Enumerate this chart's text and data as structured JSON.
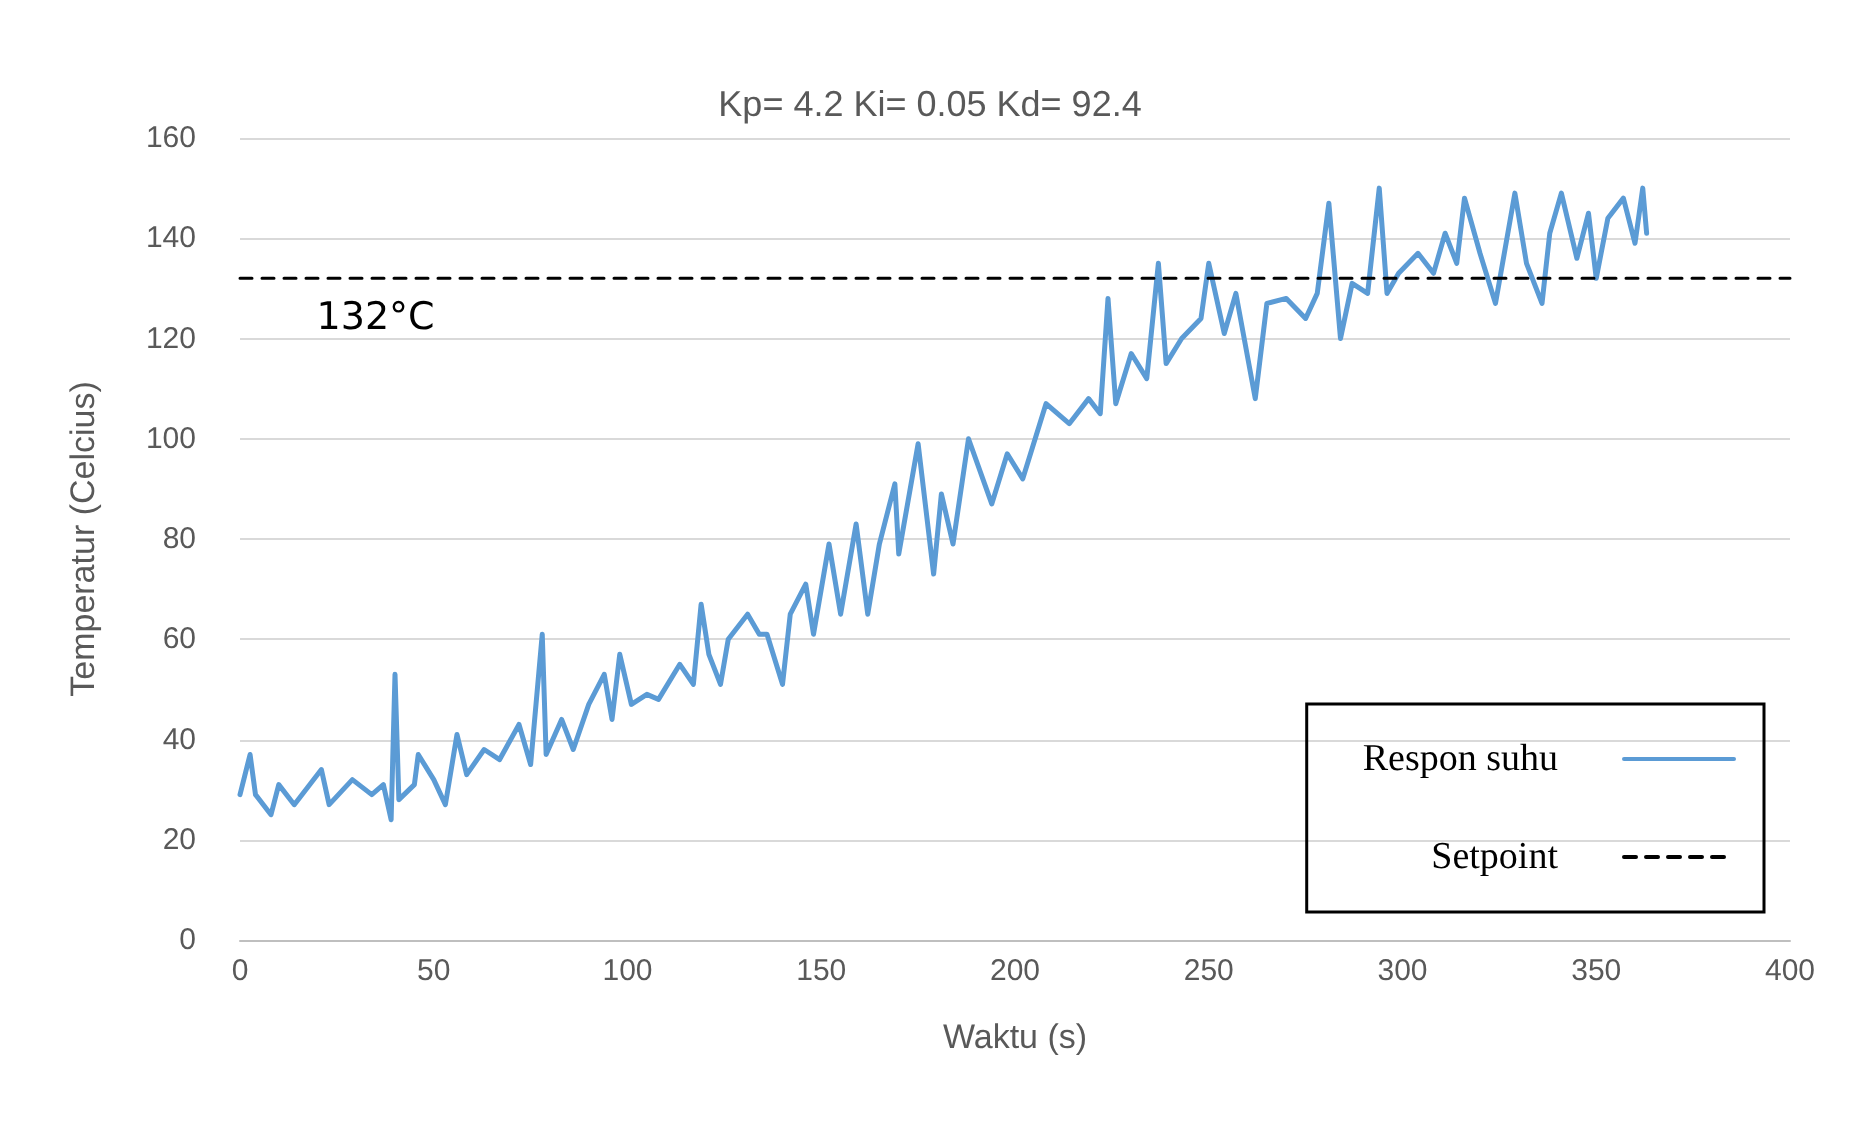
{
  "chart_data": {
    "type": "line",
    "title": "Kp= 4.2 Ki= 0.05 Kd= 92.4",
    "xlabel": "Waktu (s)",
    "ylabel": "Temperatur (Celcius)",
    "xlim": [
      0,
      400
    ],
    "xticks": [
      0,
      50,
      100,
      150,
      200,
      250,
      300,
      350,
      400
    ],
    "ylim": [
      0,
      160
    ],
    "yticks": [
      0,
      20,
      40,
      60,
      80,
      100,
      120,
      140,
      160
    ],
    "grid": "y",
    "legend": "bottom right",
    "marker": "none",
    "annotations": [
      {
        "text": "132°C",
        "x": 35,
        "y": 132
      }
    ],
    "series": [
      {
        "name": "Respon suhu",
        "color": "#5b9bd5",
        "line_style": "solid",
        "x": [
          0,
          2.6,
          4,
          8,
          10,
          14,
          21,
          23,
          29,
          34,
          37,
          39,
          40,
          41,
          45,
          46,
          50,
          53,
          56,
          58.5,
          63,
          67,
          72,
          75,
          78,
          79,
          83,
          86,
          90,
          94,
          96,
          98,
          101,
          105,
          108,
          113.5,
          117,
          119,
          121,
          124,
          126,
          131,
          134,
          136,
          140,
          142,
          146,
          148,
          152,
          155,
          159,
          162,
          165,
          169,
          170,
          175,
          179,
          181,
          184,
          188,
          194,
          198,
          202,
          208,
          214,
          219,
          222,
          224,
          226,
          230,
          234,
          237,
          239,
          243,
          248,
          250,
          254,
          257,
          262,
          265,
          270,
          275,
          278,
          281,
          284,
          287,
          291,
          294,
          296,
          299,
          304,
          308,
          311,
          314,
          316,
          320,
          324,
          329,
          332,
          336,
          338,
          341,
          345,
          348,
          350,
          353,
          357,
          360,
          362,
          363
        ],
        "values": [
          29,
          37,
          29,
          25,
          31,
          27,
          34,
          27,
          32,
          29,
          31,
          24,
          53,
          28,
          31,
          37,
          32,
          27,
          41,
          33,
          38,
          36,
          43,
          35,
          61,
          37,
          44,
          38,
          47,
          53,
          44,
          57,
          47,
          49,
          48,
          55,
          51,
          67,
          57,
          51,
          60,
          65,
          61,
          61,
          51,
          65,
          71,
          61,
          79,
          65,
          83,
          65,
          79,
          91,
          77,
          99,
          73,
          89,
          79,
          100,
          87,
          97,
          92,
          107,
          103,
          108,
          105,
          128,
          107,
          117,
          112,
          135,
          115,
          120,
          124,
          135,
          121,
          129,
          108,
          127,
          128,
          124,
          129,
          147,
          120,
          131,
          129,
          150,
          129,
          133,
          137,
          133,
          141,
          135,
          148,
          137,
          127,
          149,
          135,
          127,
          141,
          149,
          136,
          145,
          132,
          144,
          148,
          139,
          150,
          141
        ]
      },
      {
        "name": "Setpoint",
        "color": "#000000",
        "line_style": "dashed",
        "x": [
          0,
          400
        ],
        "values": [
          132,
          132
        ]
      }
    ]
  }
}
